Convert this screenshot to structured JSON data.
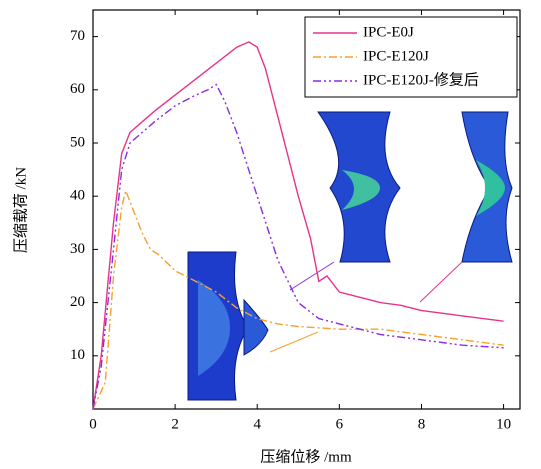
{
  "chart_data": {
    "type": "line",
    "xlabel": "压缩位移 /mm",
    "ylabel": "压缩载荷 /kN",
    "xlim": [
      0,
      10.4
    ],
    "xticks": [
      0,
      2,
      4,
      6,
      8,
      10
    ],
    "ylim": [
      0,
      75
    ],
    "yticks": [
      10,
      20,
      30,
      40,
      50,
      60,
      70
    ],
    "legend": "upper right",
    "series": [
      {
        "name": "IPC-E0J",
        "color": "#e8338a",
        "dash": "",
        "x": [
          0,
          0.2,
          0.5,
          0.7,
          0.9,
          1.2,
          1.5,
          2,
          2.5,
          3,
          3.5,
          3.8,
          4,
          4.2,
          4.5,
          5,
          5.3,
          5.5,
          5.7,
          6,
          6.5,
          7,
          7.5,
          8,
          8.5,
          9,
          9.5,
          10
        ],
        "values": [
          0,
          10,
          35,
          48,
          52,
          54,
          56,
          59,
          62,
          65,
          68,
          69,
          68,
          64,
          55,
          40,
          32,
          24,
          25,
          22,
          21,
          20,
          19.5,
          18.5,
          18,
          17.5,
          17,
          16.5
        ]
      },
      {
        "name": "IPC-E120J",
        "color": "#f5a030",
        "dash": "8 3 2 3",
        "x": [
          0,
          0.3,
          0.5,
          0.7,
          0.8,
          1,
          1.2,
          1.4,
          1.6,
          2,
          2.5,
          3,
          3.5,
          4,
          4.5,
          5,
          6,
          7,
          8,
          9,
          10
        ],
        "values": [
          0,
          5,
          25,
          38,
          41,
          37,
          33,
          30,
          29,
          26,
          24,
          22,
          19,
          17,
          16,
          15.5,
          15,
          15,
          14,
          13,
          12
        ]
      },
      {
        "name": "IPC-E120J-修复后",
        "color": "#8a2be2",
        "dash": "8 3 2 3 2 3",
        "x": [
          0,
          0.2,
          0.5,
          0.7,
          0.9,
          1.2,
          1.5,
          2,
          2.5,
          2.8,
          3,
          3.2,
          3.5,
          4,
          4.5,
          5,
          5.5,
          6,
          7,
          8,
          9,
          10
        ],
        "values": [
          0,
          8,
          30,
          45,
          50,
          52,
          54,
          57,
          59,
          60,
          61,
          58,
          52,
          40,
          28,
          20,
          17,
          16,
          14,
          13,
          12,
          11.5
        ]
      }
    ]
  }
}
